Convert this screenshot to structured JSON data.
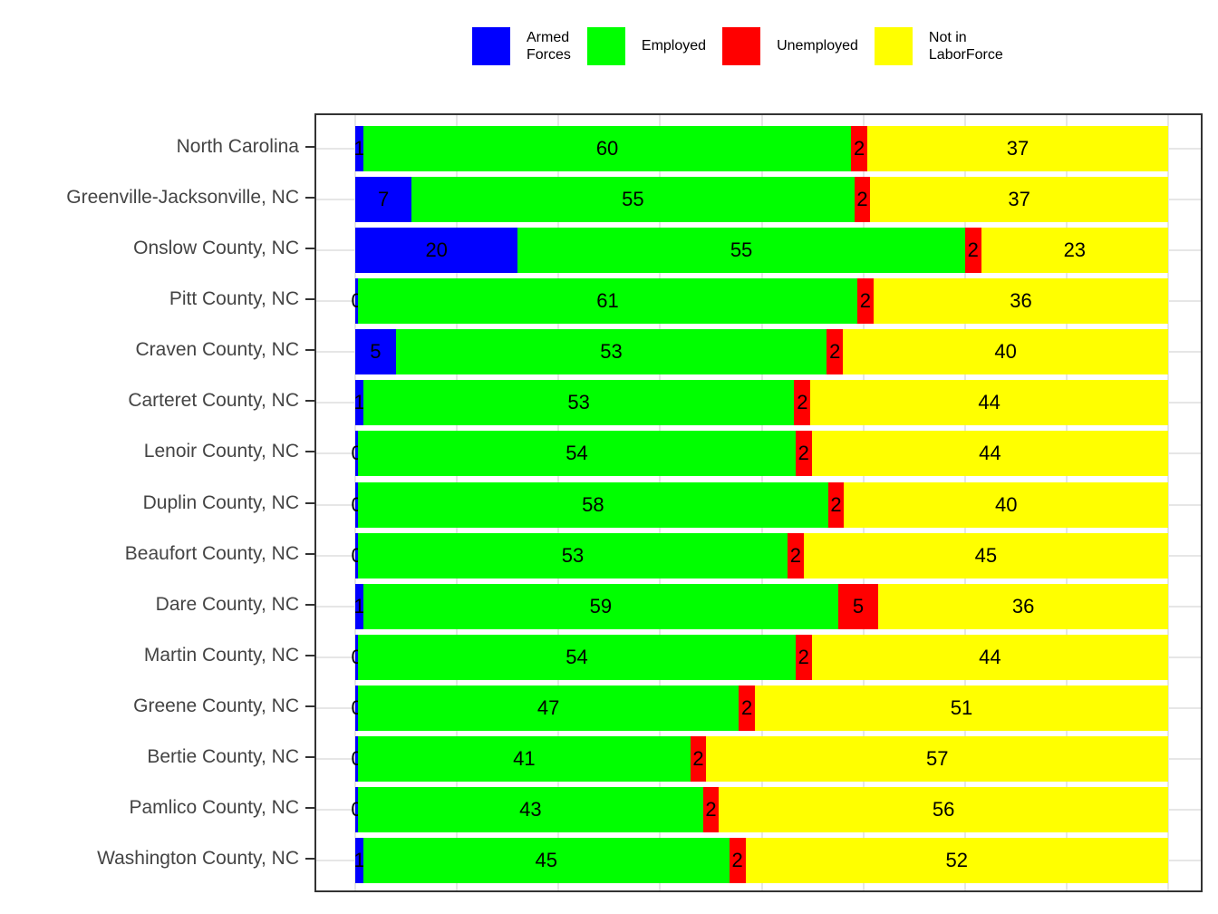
{
  "legend": {
    "items": [
      {
        "label": "Armed\nForces",
        "color": "#0000ff"
      },
      {
        "label": "Employed",
        "color": "#00ff00"
      },
      {
        "label": "Unemployed",
        "color": "#ff0000"
      },
      {
        "label": "Not in\nLaborForce",
        "color": "#ffff00"
      }
    ]
  },
  "chart_data": {
    "type": "bar",
    "orientation": "horizontal",
    "stacked": true,
    "units": "percent of population",
    "title": "",
    "xlabel": "",
    "ylabel": "",
    "xlim": [
      0,
      100
    ],
    "grid": true,
    "legend_position": "top",
    "categories": [
      "North Carolina",
      "Greenville-Jacksonville, NC",
      "Onslow County, NC",
      "Pitt County, NC",
      "Craven County, NC",
      "Carteret County, NC",
      "Lenoir County, NC",
      "Duplin County, NC",
      "Beaufort County, NC",
      "Dare County, NC",
      "Martin County, NC",
      "Greene County, NC",
      "Bertie County, NC",
      "Pamlico County, NC",
      "Washington County, NC"
    ],
    "series": [
      {
        "name": "Armed Forces",
        "color": "#0000ff",
        "values": [
          1,
          7,
          20,
          0,
          5,
          1,
          0,
          0,
          0,
          1,
          0,
          0,
          0,
          0,
          1
        ]
      },
      {
        "name": "Employed",
        "color": "#00ff00",
        "values": [
          60,
          55,
          55,
          61,
          53,
          53,
          54,
          58,
          53,
          59,
          54,
          47,
          41,
          43,
          45
        ]
      },
      {
        "name": "Unemployed",
        "color": "#ff0000",
        "values": [
          2,
          2,
          2,
          2,
          2,
          2,
          2,
          2,
          2,
          5,
          2,
          2,
          2,
          2,
          2
        ]
      },
      {
        "name": "Not in LaborForce",
        "color": "#ffff00",
        "values": [
          37,
          37,
          23,
          36,
          40,
          44,
          44,
          40,
          45,
          36,
          44,
          51,
          57,
          56,
          52
        ]
      }
    ]
  }
}
